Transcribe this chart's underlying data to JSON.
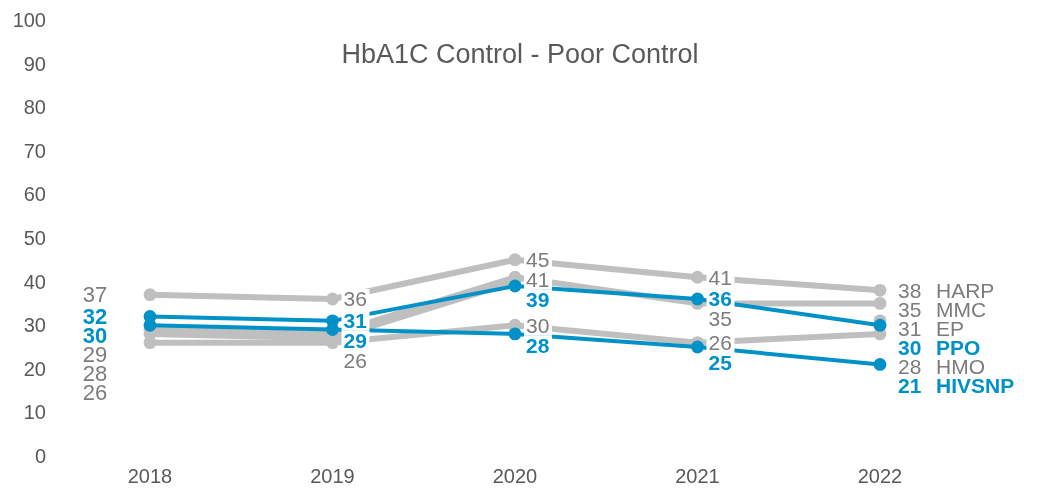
{
  "chart_data": {
    "type": "line",
    "title": "HbA1C Control - Poor Control",
    "categories": [
      "2018",
      "2019",
      "2020",
      "2021",
      "2022"
    ],
    "ylim": [
      0,
      100
    ],
    "yticks": [
      0,
      10,
      20,
      30,
      40,
      50,
      60,
      70,
      80,
      90,
      100
    ],
    "grid": false,
    "legend": false,
    "marker": "circle",
    "line_style": "solid",
    "series": [
      {
        "name": "HARP",
        "color": "#bfbfbf",
        "values": [
          37,
          36,
          45,
          41,
          38
        ],
        "value_labels": [
          "37",
          "36",
          "45",
          "41",
          "38"
        ]
      },
      {
        "name": "MMC",
        "color": "#bfbfbf",
        "values": [
          29,
          28,
          41,
          35,
          35
        ],
        "value_labels": [
          "29",
          null,
          "41",
          "35",
          "35"
        ]
      },
      {
        "name": "EP",
        "color": "#bfbfbf",
        "values": [
          28,
          27,
          40,
          null,
          31
        ],
        "value_labels": [
          "28",
          null,
          null,
          null,
          "31"
        ]
      },
      {
        "name": "HMO",
        "color": "#bfbfbf",
        "values": [
          26,
          26,
          30,
          26,
          28
        ],
        "value_labels": [
          "26",
          "26",
          "30",
          "26",
          "28"
        ]
      },
      {
        "name": "PPO",
        "color": "#0091c8",
        "values": [
          32,
          31,
          39,
          36,
          30
        ],
        "value_labels": [
          "32",
          "31",
          "39",
          "36",
          "30"
        ]
      },
      {
        "name": "HIVSNP",
        "color": "#0091c8",
        "values": [
          30,
          29,
          28,
          25,
          21
        ],
        "value_labels": [
          "30",
          "29",
          "28",
          "25",
          "21"
        ]
      }
    ]
  }
}
